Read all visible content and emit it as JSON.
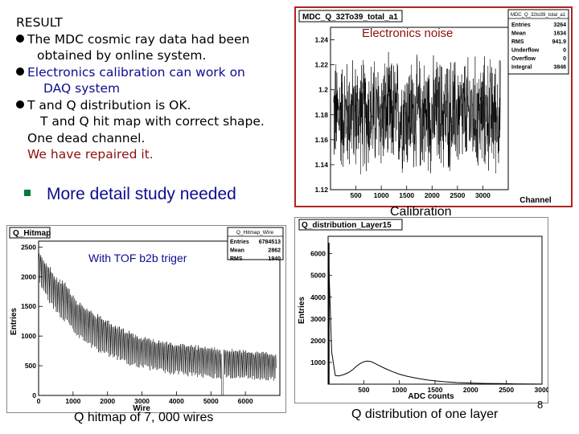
{
  "results": {
    "heading": "RESULT",
    "items": [
      "The MDC cosmic ray data had been",
      "obtained by online system.",
      "Electronics calibration can work on",
      "DAQ system",
      "T and Q distribution is OK.",
      "T and Q hit map with correct shape.",
      "One dead channel.",
      "We have repaired it."
    ],
    "more": "More detail study needed"
  },
  "labels": {
    "electronics_noise": "Electronics noise",
    "calibration": "Calibration",
    "tof": "With TOF b2b triger",
    "hitmap_caption": "Q hitmap of 7, 000 wires",
    "qdist_caption": "Q distribution of one layer",
    "page_number": "8"
  },
  "chart_data": [
    {
      "type": "line",
      "title": "MDC_Q_32To39_total_a1",
      "xlabel": "Channel",
      "ylabel": "",
      "xlim": [
        0,
        3500
      ],
      "ylim": [
        1.12,
        1.25
      ],
      "xticks": [
        "500",
        "1000",
        "1500",
        "2000",
        "2500",
        "3000"
      ],
      "yticks": [
        "1.12",
        "1.14",
        "1.16",
        "1.18",
        "1.2",
        "1.22",
        "1.24"
      ],
      "description_values": {
        "mean_level": 1.18,
        "noise_low": 1.13,
        "noise_high": 1.235
      },
      "stats": {
        "name": "MDC_Q_32to39_total_a1",
        "rows": [
          [
            "Entries",
            "3264"
          ],
          [
            "Mean",
            "1634"
          ],
          [
            "RMS",
            "941.9"
          ],
          [
            "Underflow",
            "0"
          ],
          [
            "Overflow",
            "0"
          ],
          [
            "Integral",
            "3846"
          ]
        ]
      }
    },
    {
      "type": "line",
      "title": "Q_Hitmap",
      "xlabel": "Wire",
      "ylabel": "Entries",
      "xlim": [
        0,
        7000
      ],
      "ylim": [
        0,
        2600
      ],
      "xticks": [
        "0",
        "1000",
        "2000",
        "3000",
        "4000",
        "5000",
        "6000"
      ],
      "yticks": [
        "0",
        "500",
        "1000",
        "1500",
        "2000",
        "2500"
      ],
      "x": [
        0,
        250,
        500,
        800,
        1100,
        1400,
        1800,
        2200,
        2600,
        3000,
        3400,
        3800,
        4200,
        4600,
        5000,
        5400,
        5800,
        6200,
        6600,
        7000
      ],
      "upper": [
        2450,
        2250,
        2000,
        1900,
        1600,
        1500,
        1350,
        1200,
        1100,
        1000,
        950,
        900,
        880,
        850,
        820,
        800,
        780,
        760,
        740,
        720
      ],
      "lower": [
        1900,
        1600,
        1400,
        1200,
        1000,
        850,
        700,
        600,
        500,
        450,
        400,
        350,
        330,
        300,
        290,
        280,
        270,
        260,
        250,
        240
      ],
      "stats": {
        "name": "Q_Hitmap_Wire",
        "rows": [
          [
            "Entries",
            "6784513"
          ],
          [
            "Mean",
            "2862"
          ],
          [
            "RMS",
            "1940"
          ]
        ]
      }
    },
    {
      "type": "line",
      "title": "Q_distribution_Layer15",
      "xlabel": "ADC counts",
      "ylabel": "Entries",
      "xlim": [
        0,
        3000
      ],
      "ylim": [
        0,
        6800
      ],
      "xticks": [
        "500",
        "1000",
        "1500",
        "2000",
        "2500",
        "3000"
      ],
      "yticks": [
        "1000",
        "2000",
        "3000",
        "4000",
        "5000",
        "6000"
      ],
      "x": [
        0,
        50,
        100,
        150,
        200,
        250,
        300,
        350,
        400,
        450,
        500,
        550,
        600,
        650,
        700,
        800,
        900,
        1000,
        1100,
        1200,
        1300,
        1400,
        1500,
        1600,
        1700,
        1800,
        2000,
        2200,
        2400,
        2600,
        2800,
        3000
      ],
      "values": [
        6500,
        1500,
        400,
        380,
        420,
        480,
        560,
        680,
        830,
        950,
        1030,
        1060,
        1040,
        970,
        880,
        720,
        580,
        460,
        370,
        300,
        240,
        190,
        150,
        120,
        95,
        75,
        50,
        35,
        25,
        15,
        10,
        5
      ]
    }
  ]
}
